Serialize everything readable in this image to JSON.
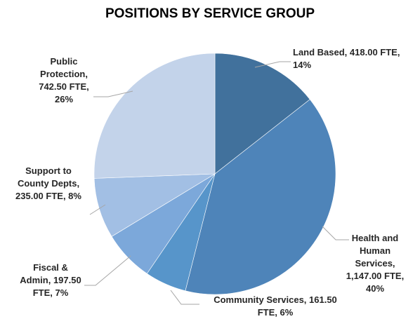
{
  "chart_data": {
    "type": "pie",
    "title": "POSITIONS BY SERVICE GROUP",
    "start_angle_deg": 0,
    "slices": [
      {
        "name": "Land Based",
        "value": 418.0,
        "percent": 14,
        "color": "#41719c",
        "label_lines": [
          "Land Based, 418.00 FTE,",
          "14%"
        ]
      },
      {
        "name": "Health and Human Services",
        "value": 1147.0,
        "percent": 40,
        "color": "#4e84b9",
        "label_lines": [
          "Health and",
          "Human",
          "Services,",
          "1,147.00 FTE,",
          "40%"
        ]
      },
      {
        "name": "Community Services",
        "value": 161.5,
        "percent": 6,
        "color": "#5795ca",
        "label_lines": [
          "Community Services, 161.50",
          "FTE, 6%"
        ]
      },
      {
        "name": "Fiscal & Admin",
        "value": 197.5,
        "percent": 7,
        "color": "#7ca8da",
        "label_lines": [
          "Fiscal &",
          "Admin, 197.50",
          "FTE, 7%"
        ]
      },
      {
        "name": "Support to County Depts",
        "value": 235.0,
        "percent": 8,
        "color": "#a2bfe4",
        "label_lines": [
          "Support to",
          "County Depts,",
          "235.00 FTE, 8%"
        ]
      },
      {
        "name": "Public Protection",
        "value": 742.5,
        "percent": 26,
        "color": "#c3d3ea",
        "label_lines": [
          "Public",
          "Protection,",
          "742.50 FTE,",
          "26%"
        ]
      }
    ]
  }
}
